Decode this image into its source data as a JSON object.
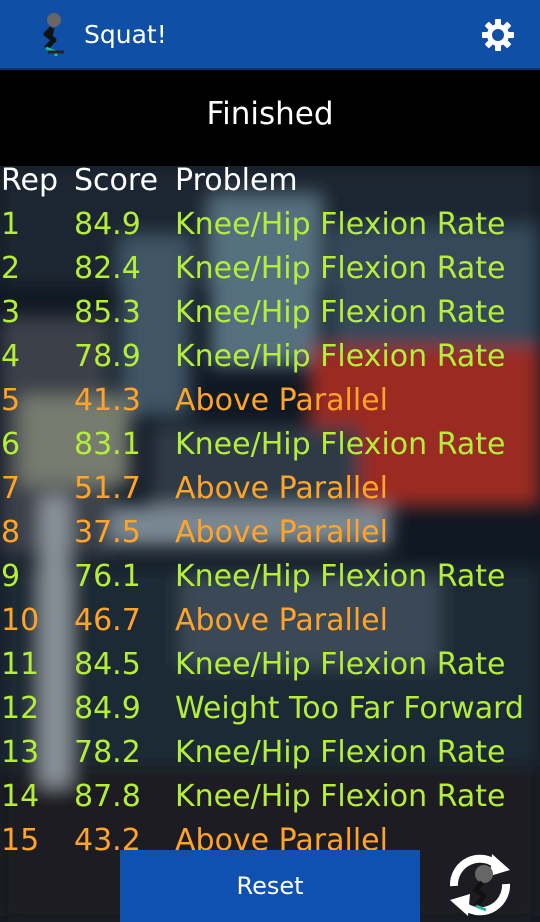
{
  "app": {
    "title": "Squat!",
    "logo_icon": "squatter-figure-icon",
    "settings_icon": "gear-icon"
  },
  "status": {
    "text": "Finished"
  },
  "table": {
    "headers": {
      "rep": "Rep",
      "score": "Score",
      "problem": "Problem"
    },
    "rows": [
      {
        "rep": "1",
        "score": "84.9",
        "problem": "Knee/Hip Flexion Rate",
        "severity": "minor"
      },
      {
        "rep": "2",
        "score": "82.4",
        "problem": "Knee/Hip Flexion Rate",
        "severity": "minor"
      },
      {
        "rep": "3",
        "score": "85.3",
        "problem": "Knee/Hip Flexion Rate",
        "severity": "minor"
      },
      {
        "rep": "4",
        "score": "78.9",
        "problem": "Knee/Hip Flexion Rate",
        "severity": "minor"
      },
      {
        "rep": "5",
        "score": "41.3",
        "problem": "Above Parallel",
        "severity": "major"
      },
      {
        "rep": "6",
        "score": "83.1",
        "problem": "Knee/Hip Flexion Rate",
        "severity": "minor"
      },
      {
        "rep": "7",
        "score": "51.7",
        "problem": "Above Parallel",
        "severity": "major"
      },
      {
        "rep": "8",
        "score": "37.5",
        "problem": "Above Parallel",
        "severity": "major"
      },
      {
        "rep": "9",
        "score": "76.1",
        "problem": "Knee/Hip Flexion Rate",
        "severity": "minor"
      },
      {
        "rep": "10",
        "score": "46.7",
        "problem": "Above Parallel",
        "severity": "major"
      },
      {
        "rep": "11",
        "score": "84.5",
        "problem": "Knee/Hip Flexion Rate",
        "severity": "minor"
      },
      {
        "rep": "12",
        "score": "84.9",
        "problem": "Weight Too Far Forward",
        "severity": "minor"
      },
      {
        "rep": "13",
        "score": "78.2",
        "problem": "Knee/Hip Flexion Rate",
        "severity": "minor"
      },
      {
        "rep": "14",
        "score": "87.8",
        "problem": "Knee/Hip Flexion Rate",
        "severity": "minor"
      },
      {
        "rep": "15",
        "score": "43.2",
        "problem": "Above Parallel",
        "severity": "major"
      }
    ]
  },
  "colors": {
    "appbar": "#0f4fa6",
    "button": "#0e51b0",
    "minor": "#b4ee3a",
    "major": "#ffa42a",
    "header_text": "#ffffff"
  },
  "actions": {
    "reset_label": "Reset",
    "switch_icon": "rotate-camera-icon"
  }
}
